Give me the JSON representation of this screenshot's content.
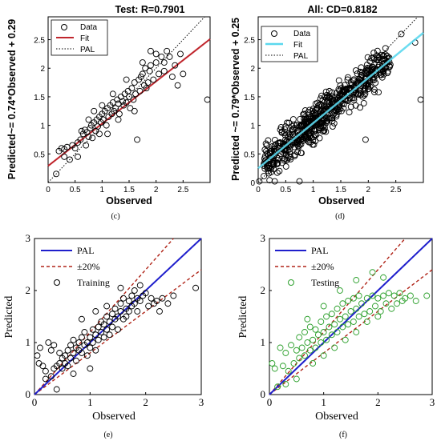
{
  "chart_data": [
    {
      "id": "c",
      "type": "scatter",
      "title": "Test: R=0.7901",
      "xlabel": "Observed",
      "ylabel": "Predicted~= 0.74*Observed + 0.29",
      "caption": "(c)",
      "xlim": [
        0,
        3.0
      ],
      "ylim": [
        0,
        2.9
      ],
      "xticks": [
        0,
        0.5,
        1,
        1.5,
        2,
        2.5
      ],
      "yticks": [
        0.5,
        1,
        1.5,
        2,
        2.5
      ],
      "grid": false,
      "legend_position": "top-left",
      "legend": [
        "Data",
        "Fit",
        "PAL"
      ],
      "fit_line": {
        "slope": 0.74,
        "intercept": 0.29
      },
      "colors": {
        "points": "#000000",
        "fit": "#c0262d",
        "pal": "#000000"
      },
      "points": [
        [
          0.2,
          0.55
        ],
        [
          0.25,
          0.6
        ],
        [
          0.3,
          0.58
        ],
        [
          0.35,
          0.62
        ],
        [
          0.3,
          0.45
        ],
        [
          0.45,
          0.65
        ],
        [
          0.5,
          0.6
        ],
        [
          0.55,
          0.7
        ],
        [
          0.6,
          0.75
        ],
        [
          0.62,
          0.9
        ],
        [
          0.65,
          0.85
        ],
        [
          0.68,
          0.92
        ],
        [
          0.7,
          0.65
        ],
        [
          0.72,
          0.88
        ],
        [
          0.75,
          0.8
        ],
        [
          0.78,
          0.95
        ],
        [
          0.8,
          1.0
        ],
        [
          0.82,
          0.78
        ],
        [
          0.85,
          1.05
        ],
        [
          0.88,
          0.9
        ],
        [
          0.9,
          1.1
        ],
        [
          0.92,
          0.98
        ],
        [
          0.95,
          1.15
        ],
        [
          0.98,
          1.05
        ],
        [
          1.0,
          1.2
        ],
        [
          1.02,
          1.1
        ],
        [
          1.05,
          1.25
        ],
        [
          1.08,
          1.0
        ],
        [
          1.1,
          1.3
        ],
        [
          1.12,
          1.15
        ],
        [
          1.15,
          1.35
        ],
        [
          1.18,
          1.2
        ],
        [
          1.2,
          1.4
        ],
        [
          1.22,
          1.25
        ],
        [
          1.25,
          1.3
        ],
        [
          1.28,
          1.45
        ],
        [
          1.3,
          1.38
        ],
        [
          1.32,
          1.2
        ],
        [
          1.35,
          1.5
        ],
        [
          1.38,
          1.42
        ],
        [
          1.4,
          1.35
        ],
        [
          1.42,
          1.55
        ],
        [
          1.45,
          1.4
        ],
        [
          1.48,
          1.6
        ],
        [
          1.5,
          1.5
        ],
        [
          1.52,
          1.3
        ],
        [
          1.55,
          1.65
        ],
        [
          1.58,
          1.45
        ],
        [
          1.6,
          1.75
        ],
        [
          1.62,
          1.55
        ],
        [
          1.65,
          0.75
        ],
        [
          1.68,
          1.8
        ],
        [
          1.7,
          1.6
        ],
        [
          1.72,
          1.85
        ],
        [
          1.75,
          1.9
        ],
        [
          1.78,
          1.7
        ],
        [
          1.8,
          2.0
        ],
        [
          1.82,
          1.65
        ],
        [
          1.85,
          1.75
        ],
        [
          1.88,
          1.95
        ],
        [
          1.9,
          2.05
        ],
        [
          1.95,
          1.8
        ],
        [
          2.0,
          2.1
        ],
        [
          2.05,
          1.9
        ],
        [
          2.1,
          2.2
        ],
        [
          2.15,
          2.1
        ],
        [
          2.2,
          2.3
        ],
        [
          2.25,
          2.2
        ],
        [
          2.3,
          1.85
        ],
        [
          2.35,
          2.05
        ],
        [
          2.4,
          1.7
        ],
        [
          2.45,
          2.25
        ],
        [
          2.5,
          1.9
        ],
        [
          2.95,
          1.45
        ],
        [
          0.15,
          0.15
        ],
        [
          0.4,
          0.4
        ],
        [
          1.1,
          0.85
        ],
        [
          1.3,
          1.1
        ],
        [
          0.55,
          0.45
        ],
        [
          0.85,
          1.25
        ],
        [
          1.0,
          1.35
        ],
        [
          1.2,
          1.55
        ],
        [
          1.45,
          1.8
        ],
        [
          1.75,
          2.1
        ],
        [
          2.0,
          2.25
        ],
        [
          2.15,
          1.95
        ],
        [
          0.75,
          1.1
        ],
        [
          0.95,
          0.85
        ],
        [
          1.6,
          1.25
        ],
        [
          1.9,
          2.3
        ]
      ]
    },
    {
      "id": "d",
      "type": "scatter",
      "title": "All: CD=0.8182",
      "xlabel": "Observed",
      "ylabel": "Predicted ~= 0.79*Observed + 0.25",
      "caption": "(d)",
      "xlim": [
        0,
        3.0
      ],
      "ylim": [
        0,
        2.9
      ],
      "xticks": [
        0,
        0.5,
        1,
        1.5,
        2,
        2.5
      ],
      "yticks": [
        0,
        0.5,
        1,
        1.5,
        2,
        2.5
      ],
      "grid": false,
      "legend_position": "top-right",
      "legend": [
        "Data",
        "Fit",
        "PAL"
      ],
      "fit_line": {
        "slope": 0.79,
        "intercept": 0.25
      },
      "colors": {
        "points": "#000000",
        "fit": "#5bd8ee",
        "pal": "#000000"
      }
    },
    {
      "id": "e",
      "type": "scatter",
      "xlabel": "Observed",
      "ylabel": "Predicted",
      "caption": "(e)",
      "xlim": [
        0,
        3
      ],
      "ylim": [
        0,
        3
      ],
      "xticks": [
        0,
        1,
        2,
        3
      ],
      "yticks": [
        0,
        1,
        2,
        3
      ],
      "grid": false,
      "legend_position": "top-left",
      "legend": [
        "PAL",
        "±20%",
        "Training"
      ],
      "band_pct": 20,
      "colors": {
        "points": "#000000",
        "pal": "#1f1fcc",
        "band": "#b02418"
      },
      "points": [
        [
          0.05,
          0.75
        ],
        [
          0.08,
          0.6
        ],
        [
          0.1,
          0.9
        ],
        [
          0.15,
          0.55
        ],
        [
          0.2,
          0.45
        ],
        [
          0.25,
          1.0
        ],
        [
          0.3,
          0.35
        ],
        [
          0.3,
          0.85
        ],
        [
          0.35,
          0.5
        ],
        [
          0.35,
          0.95
        ],
        [
          0.4,
          0.55
        ],
        [
          0.4,
          0.1
        ],
        [
          0.45,
          0.6
        ],
        [
          0.45,
          0.8
        ],
        [
          0.5,
          0.7
        ],
        [
          0.5,
          0.5
        ],
        [
          0.55,
          0.75
        ],
        [
          0.55,
          0.6
        ],
        [
          0.6,
          0.85
        ],
        [
          0.6,
          0.55
        ],
        [
          0.65,
          0.95
        ],
        [
          0.65,
          0.7
        ],
        [
          0.7,
          0.8
        ],
        [
          0.7,
          1.05
        ],
        [
          0.75,
          0.9
        ],
        [
          0.75,
          0.65
        ],
        [
          0.8,
          1.0
        ],
        [
          0.8,
          0.85
        ],
        [
          0.85,
          1.1
        ],
        [
          0.85,
          0.8
        ],
        [
          0.9,
          0.95
        ],
        [
          0.9,
          1.2
        ],
        [
          0.95,
          1.0
        ],
        [
          0.95,
          0.75
        ],
        [
          1.0,
          1.1
        ],
        [
          1.0,
          0.9
        ],
        [
          1.05,
          1.25
        ],
        [
          1.05,
          1.0
        ],
        [
          1.1,
          1.15
        ],
        [
          1.1,
          0.85
        ],
        [
          1.15,
          1.3
        ],
        [
          1.15,
          1.05
        ],
        [
          1.2,
          1.2
        ],
        [
          1.2,
          1.4
        ],
        [
          1.25,
          1.1
        ],
        [
          1.25,
          1.35
        ],
        [
          1.3,
          1.25
        ],
        [
          1.3,
          1.5
        ],
        [
          1.35,
          1.4
        ],
        [
          1.35,
          1.15
        ],
        [
          1.4,
          1.55
        ],
        [
          1.4,
          1.3
        ],
        [
          1.45,
          1.45
        ],
        [
          1.45,
          1.65
        ],
        [
          1.5,
          1.5
        ],
        [
          1.5,
          1.25
        ],
        [
          1.55,
          1.6
        ],
        [
          1.55,
          1.75
        ],
        [
          1.6,
          1.45
        ],
        [
          1.6,
          1.85
        ],
        [
          1.65,
          1.65
        ],
        [
          1.65,
          1.5
        ],
        [
          1.7,
          1.8
        ],
        [
          1.7,
          1.6
        ],
        [
          1.75,
          1.9
        ],
        [
          1.75,
          1.7
        ],
        [
          1.8,
          2.0
        ],
        [
          1.8,
          1.75
        ],
        [
          1.85,
          1.85
        ],
        [
          1.85,
          1.6
        ],
        [
          1.9,
          2.1
        ],
        [
          1.9,
          1.8
        ],
        [
          1.95,
          1.9
        ],
        [
          2.0,
          1.95
        ],
        [
          2.05,
          1.7
        ],
        [
          2.1,
          1.85
        ],
        [
          2.15,
          1.75
        ],
        [
          2.2,
          1.8
        ],
        [
          2.25,
          1.6
        ],
        [
          2.3,
          1.85
        ],
        [
          2.4,
          1.75
        ],
        [
          2.5,
          1.9
        ],
        [
          2.9,
          2.05
        ],
        [
          0.2,
          0.3
        ],
        [
          0.85,
          1.45
        ],
        [
          1.1,
          1.6
        ],
        [
          1.3,
          1.7
        ],
        [
          1.55,
          2.05
        ],
        [
          1.0,
          0.5
        ],
        [
          0.7,
          0.4
        ]
      ]
    },
    {
      "id": "f",
      "type": "scatter",
      "xlabel": "Observed",
      "ylabel": "Predicted",
      "caption": "(f)",
      "xlim": [
        0,
        3
      ],
      "ylim": [
        0,
        3
      ],
      "xticks": [
        0,
        1,
        2,
        3
      ],
      "yticks": [
        0,
        1,
        2,
        3
      ],
      "grid": false,
      "legend_position": "top-left",
      "legend": [
        "PAL",
        "±20%",
        "Testing"
      ],
      "band_pct": 20,
      "colors": {
        "points": "#2ca02c",
        "pal": "#1f1fcc",
        "band": "#b02418"
      },
      "points": [
        [
          0.05,
          0.6
        ],
        [
          0.1,
          0.5
        ],
        [
          0.15,
          0.15
        ],
        [
          0.2,
          0.9
        ],
        [
          0.25,
          0.55
        ],
        [
          0.3,
          0.8
        ],
        [
          0.35,
          0.45
        ],
        [
          0.4,
          0.95
        ],
        [
          0.45,
          0.6
        ],
        [
          0.5,
          0.85
        ],
        [
          0.55,
          0.7
        ],
        [
          0.55,
          1.1
        ],
        [
          0.6,
          0.9
        ],
        [
          0.65,
          0.75
        ],
        [
          0.65,
          1.2
        ],
        [
          0.7,
          1.0
        ],
        [
          0.75,
          0.85
        ],
        [
          0.75,
          1.3
        ],
        [
          0.8,
          1.05
        ],
        [
          0.85,
          0.9
        ],
        [
          0.85,
          1.25
        ],
        [
          0.9,
          1.15
        ],
        [
          0.95,
          1.0
        ],
        [
          0.95,
          1.4
        ],
        [
          1.0,
          1.2
        ],
        [
          1.05,
          1.05
        ],
        [
          1.05,
          1.5
        ],
        [
          1.1,
          1.3
        ],
        [
          1.15,
          1.15
        ],
        [
          1.15,
          1.55
        ],
        [
          1.2,
          1.35
        ],
        [
          1.25,
          1.2
        ],
        [
          1.25,
          1.65
        ],
        [
          1.3,
          1.45
        ],
        [
          1.35,
          1.3
        ],
        [
          1.35,
          1.75
        ],
        [
          1.4,
          1.5
        ],
        [
          1.45,
          1.35
        ],
        [
          1.45,
          1.8
        ],
        [
          1.5,
          1.6
        ],
        [
          1.55,
          1.4
        ],
        [
          1.55,
          1.85
        ],
        [
          1.6,
          1.65
        ],
        [
          1.65,
          1.5
        ],
        [
          1.65,
          1.9
        ],
        [
          1.7,
          1.75
        ],
        [
          1.75,
          1.55
        ],
        [
          1.8,
          1.85
        ],
        [
          1.85,
          1.6
        ],
        [
          1.9,
          1.9
        ],
        [
          1.95,
          1.7
        ],
        [
          2.0,
          1.85
        ],
        [
          2.05,
          1.6
        ],
        [
          2.1,
          1.9
        ],
        [
          2.15,
          1.75
        ],
        [
          2.2,
          1.95
        ],
        [
          2.25,
          1.65
        ],
        [
          2.3,
          1.9
        ],
        [
          2.35,
          1.75
        ],
        [
          2.4,
          1.95
        ],
        [
          2.45,
          1.8
        ],
        [
          2.5,
          1.85
        ],
        [
          2.6,
          1.9
        ],
        [
          2.7,
          1.8
        ],
        [
          2.9,
          1.9
        ],
        [
          0.3,
          0.2
        ],
        [
          0.5,
          0.3
        ],
        [
          0.8,
          0.6
        ],
        [
          1.0,
          0.75
        ],
        [
          1.2,
          0.9
        ],
        [
          1.4,
          1.05
        ],
        [
          1.6,
          1.2
        ],
        [
          1.8,
          1.4
        ],
        [
          2.0,
          1.5
        ],
        [
          1.3,
          2.0
        ],
        [
          1.6,
          2.2
        ],
        [
          1.0,
          1.7
        ],
        [
          0.7,
          1.45
        ],
        [
          2.1,
          2.25
        ],
        [
          1.9,
          2.35
        ]
      ]
    }
  ]
}
